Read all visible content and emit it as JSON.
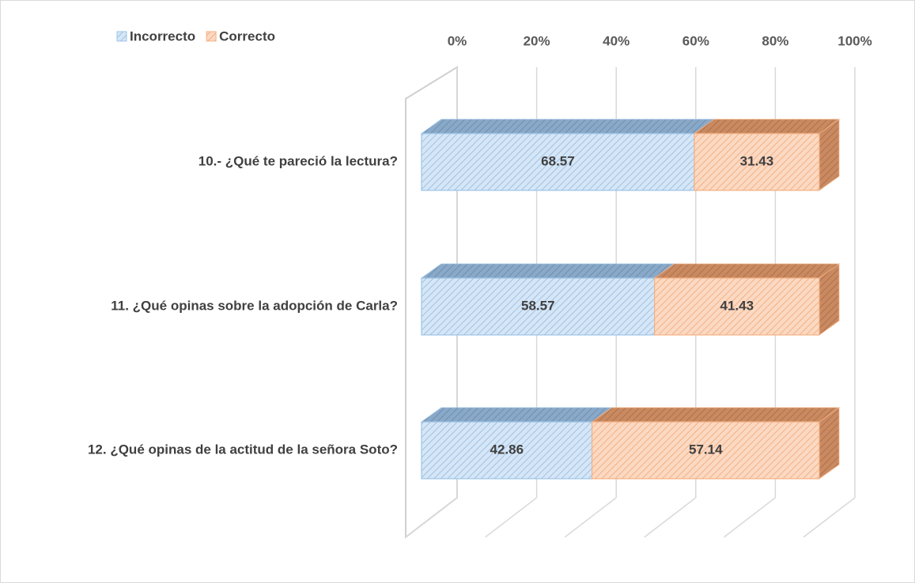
{
  "chart_data": {
    "type": "bar",
    "orientation": "horizontal",
    "stacked": true,
    "three_d": true,
    "categories": [
      "10.- ¿Qué te pareció la lectura?",
      "11. ¿Qué opinas sobre la adopción de Carla?",
      "12. ¿Qué opinas de la actitud de la señora Soto?"
    ],
    "series": [
      {
        "name": "Incorrecto",
        "color": "#9dc3e6",
        "values": [
          68.57,
          58.57,
          42.86
        ]
      },
      {
        "name": "Correcto",
        "color": "#f4b183",
        "values": [
          31.43,
          41.43,
          57.14
        ]
      }
    ],
    "xlim": [
      0,
      100
    ],
    "xticks": [
      {
        "value": 0,
        "label": "0%"
      },
      {
        "value": 20,
        "label": "20%"
      },
      {
        "value": 40,
        "label": "40%"
      },
      {
        "value": 60,
        "label": "60%"
      },
      {
        "value": 80,
        "label": "80%"
      },
      {
        "value": 100,
        "label": "100%"
      }
    ],
    "grid": true,
    "legend": "top-left",
    "data_labels": true
  }
}
